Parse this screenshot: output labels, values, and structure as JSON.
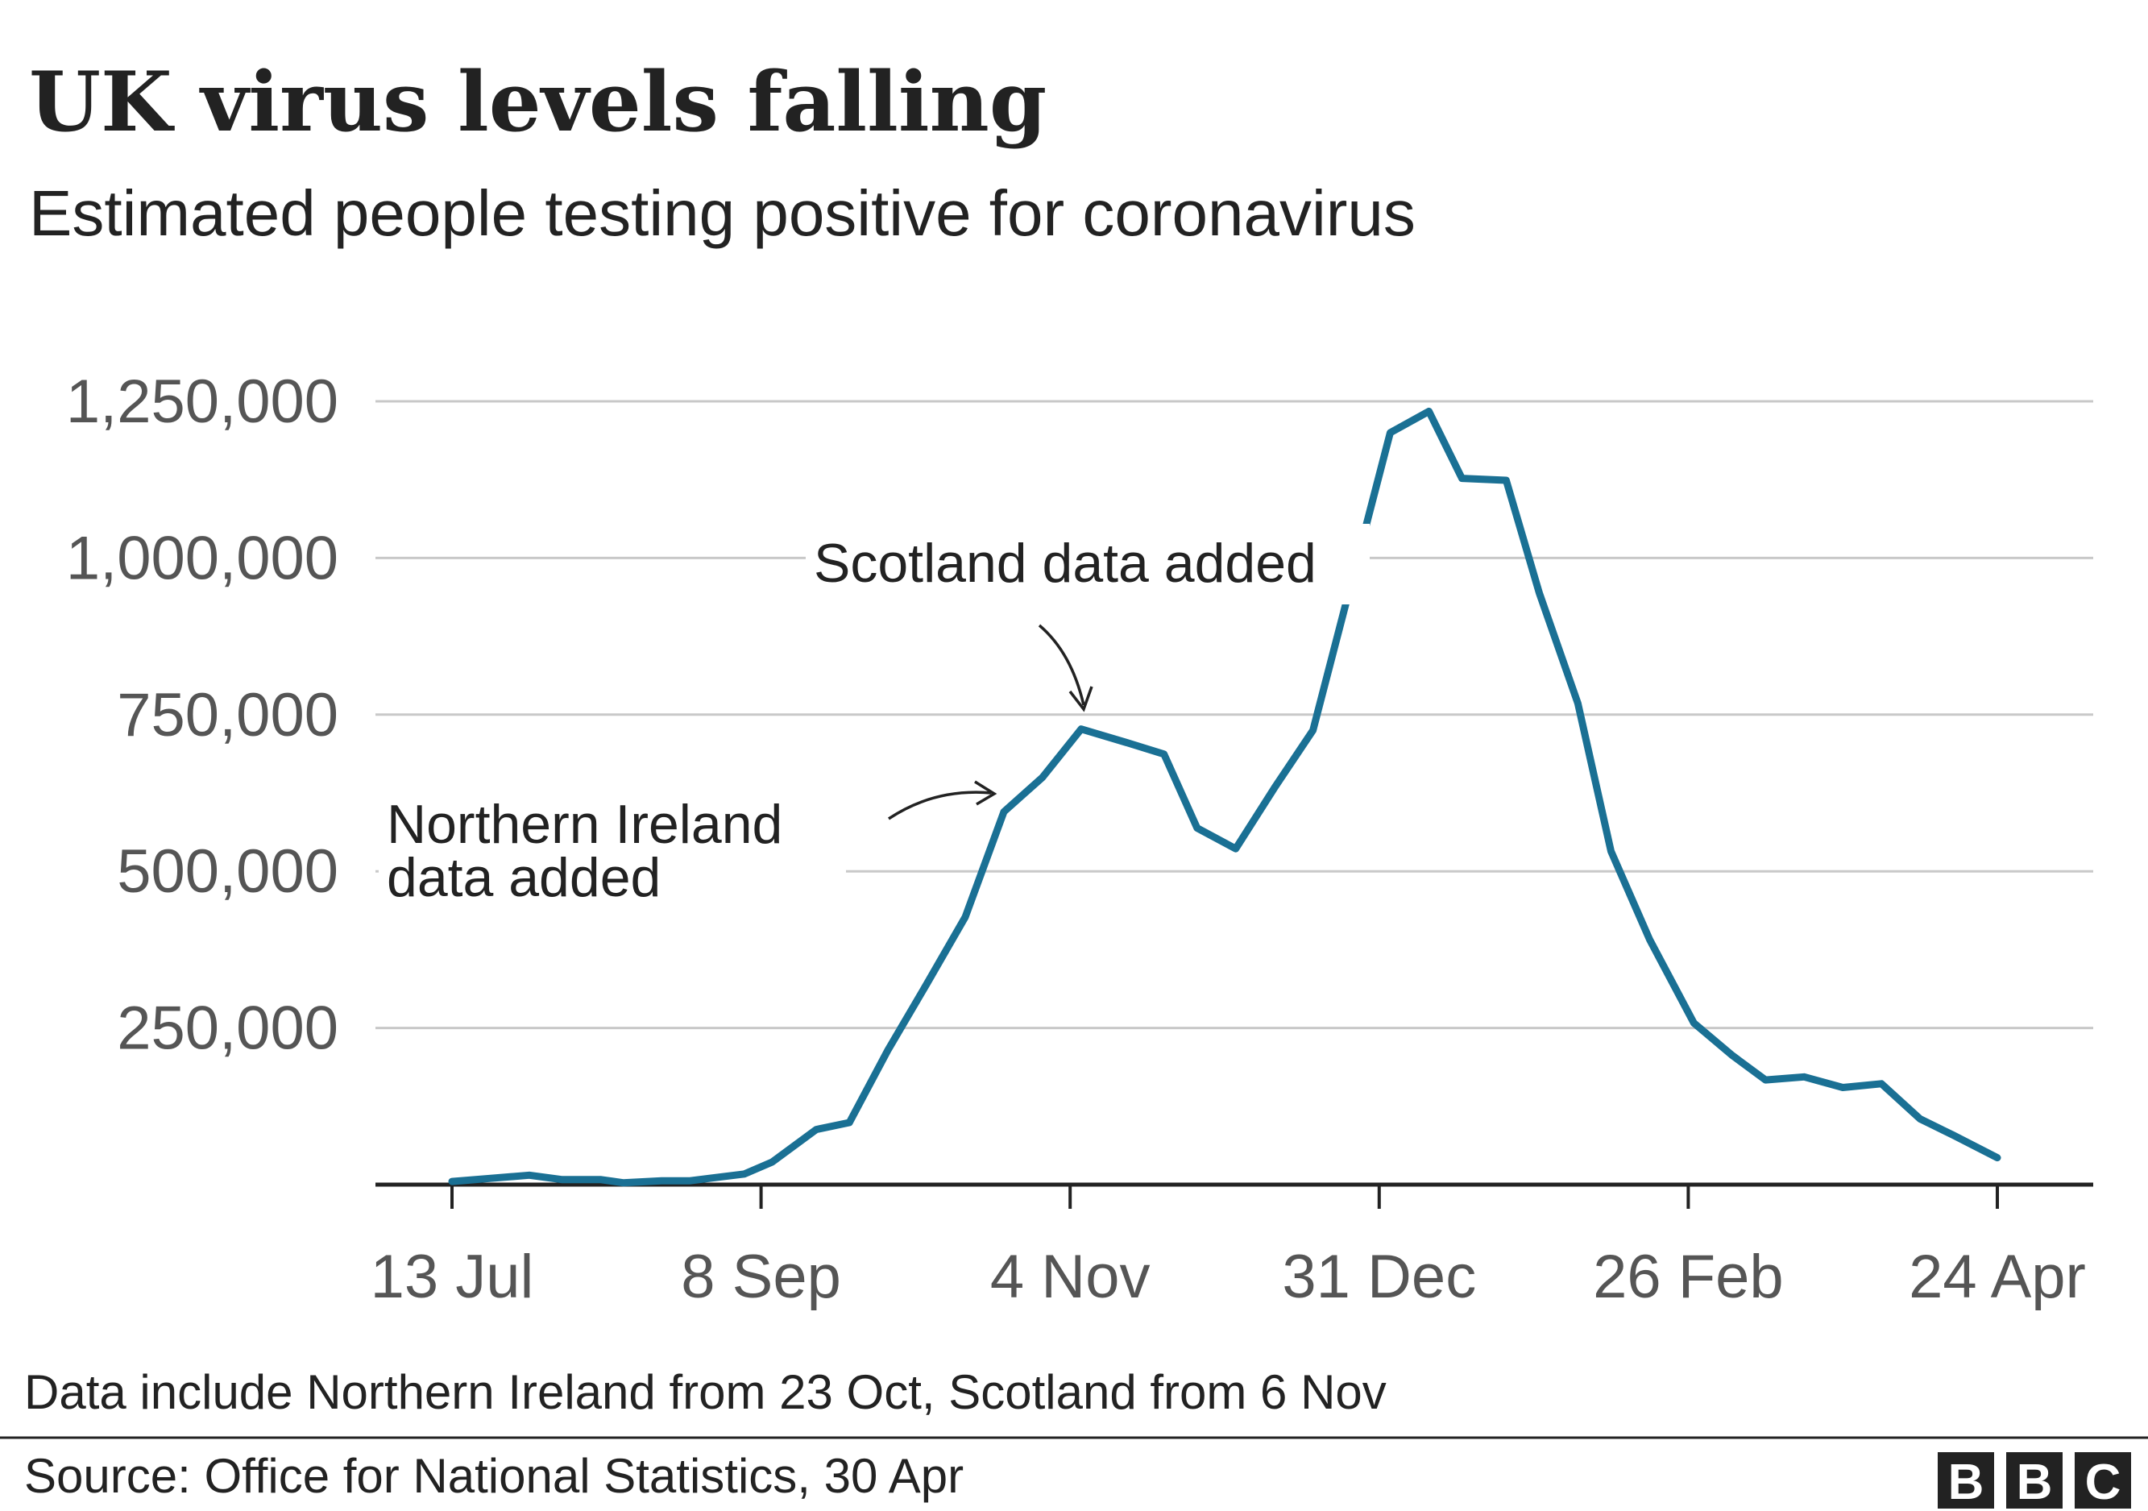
{
  "chart_data": {
    "type": "line",
    "title": "UK virus levels falling",
    "subtitle": "Estimated people testing positive for coronavirus",
    "xlabel": "",
    "ylabel": "",
    "x_unit": "days since 13 Jul",
    "ylim": [
      0,
      1300000
    ],
    "yticks": [
      250000,
      500000,
      750000,
      1000000,
      1250000
    ],
    "ytick_labels": [
      "250,000",
      "500,000",
      "750,000",
      "1,000,000",
      "1,250,000"
    ],
    "xticks": [
      0,
      56,
      112,
      168,
      224,
      280
    ],
    "xtick_labels": [
      "13 Jul",
      "8 Sep",
      "4 Nov",
      "31 Dec",
      "26 Feb",
      "24 Apr"
    ],
    "grid": true,
    "series": [
      {
        "name": "Estimated people testing positive",
        "color": "#1a7094",
        "x": [
          0,
          7,
          14,
          20,
          27,
          31,
          38,
          43,
          53,
          58,
          66,
          72,
          79,
          86,
          93,
          100,
          107,
          114,
          122,
          129,
          135,
          142,
          149,
          156,
          170,
          177,
          183,
          191,
          197,
          204,
          210,
          217,
          225,
          232,
          238,
          245,
          252,
          259,
          266,
          272,
          280
        ],
        "values": [
          5000,
          10000,
          15000,
          8000,
          8000,
          3000,
          6000,
          6000,
          17000,
          36000,
          88000,
          99000,
          215000,
          320000,
          427000,
          595000,
          650000,
          727000,
          706000,
          687000,
          569000,
          536000,
          633000,
          725000,
          1200000,
          1234000,
          1127000,
          1124000,
          944000,
          768000,
          532000,
          391000,
          258000,
          206000,
          167000,
          172000,
          155000,
          161000,
          105000,
          79000,
          43000
        ]
      }
    ],
    "annotations": [
      {
        "text_lines": [
          "Northern Ireland",
          "data added"
        ]
      },
      {
        "text_lines": [
          "Scotland data added"
        ]
      }
    ]
  },
  "footer": {
    "note": "Data include Northern Ireland from 23 Oct, Scotland from 6 Nov",
    "source": "Source: Office for National Statistics, 30 Apr",
    "logo": [
      "B",
      "B",
      "C"
    ]
  }
}
